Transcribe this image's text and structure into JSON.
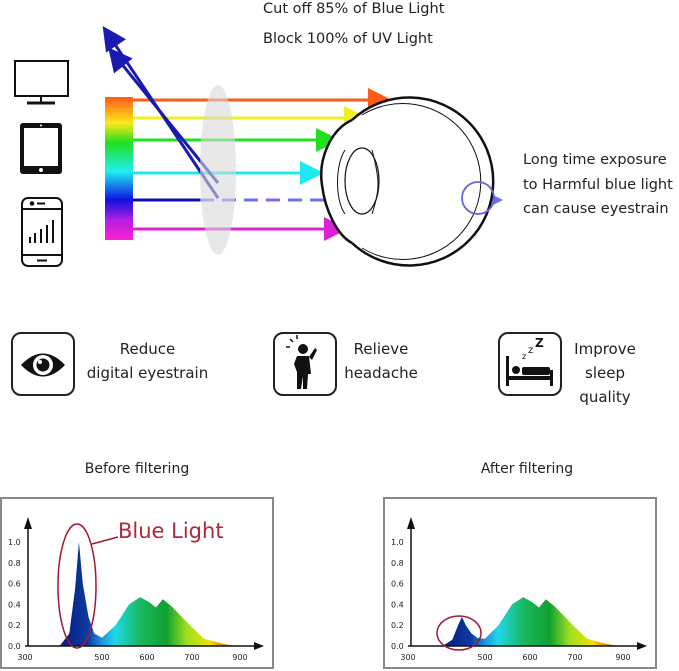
{
  "header": {
    "line1": "Cut off 85% of Blue Light",
    "line2": "Block 100% of UV Light"
  },
  "devices": [
    "monitor-icon",
    "tablet-icon",
    "smartphone-icon"
  ],
  "eye_note": [
    "Long time exposure",
    "to Harmful blue light",
    "can cause eyestrain"
  ],
  "benefits": [
    {
      "icon": "eye-icon",
      "line1": "Reduce",
      "line2": "digital eyestrain"
    },
    {
      "icon": "headache-person-icon",
      "line1": "Relieve",
      "line2": "headache"
    },
    {
      "icon": "sleeping-bed-icon",
      "line1": "Improve",
      "line2": "sleep quality"
    }
  ],
  "colors": {
    "blue_light_label": "#b0283a",
    "dashed_blue": "#7070e8"
  },
  "chart_data": [
    {
      "type": "area",
      "title": "Before filtering",
      "annotation": "Blue Light",
      "x_ticks": [
        "300",
        "500",
        "600",
        "700",
        "900"
      ],
      "y_ticks": [
        "0.0",
        "0.2",
        "0.4",
        "0.6",
        "0.8",
        "1.0"
      ],
      "ylim": [
        0,
        1.0
      ],
      "x": [
        390,
        415,
        430,
        440,
        450,
        465,
        480,
        500,
        530,
        560,
        585,
        605,
        620,
        635,
        655,
        700,
        750,
        830,
        880
      ],
      "y": [
        0,
        0.12,
        0.55,
        1.0,
        0.6,
        0.28,
        0.12,
        0.08,
        0.2,
        0.4,
        0.47,
        0.42,
        0.37,
        0.45,
        0.38,
        0.18,
        0.07,
        0.02,
        0
      ]
    },
    {
      "type": "area",
      "title": "After filtering",
      "x_ticks": [
        "300",
        "500",
        "600",
        "700",
        "900"
      ],
      "y_ticks": [
        "0.0",
        "0.2",
        "0.4",
        "0.6",
        "0.8",
        "1.0"
      ],
      "ylim": [
        0,
        1.0
      ],
      "x": [
        390,
        415,
        430,
        440,
        450,
        465,
        480,
        500,
        530,
        560,
        585,
        605,
        620,
        635,
        655,
        700,
        750,
        830,
        880
      ],
      "y": [
        0,
        0.06,
        0.2,
        0.28,
        0.2,
        0.12,
        0.08,
        0.07,
        0.2,
        0.4,
        0.47,
        0.42,
        0.37,
        0.45,
        0.38,
        0.18,
        0.07,
        0.02,
        0
      ]
    }
  ]
}
